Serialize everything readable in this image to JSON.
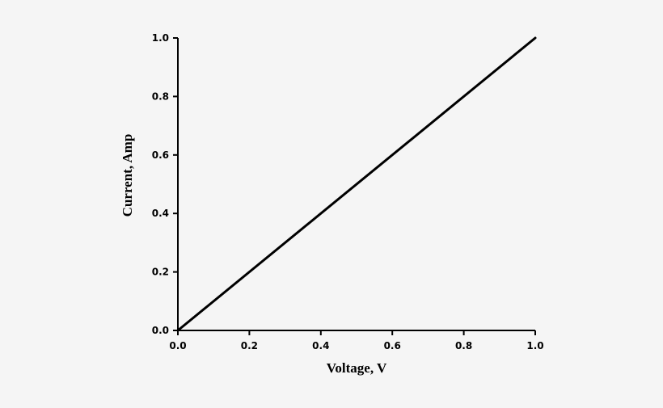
{
  "chart_data": {
    "type": "line",
    "title": "",
    "xlabel": "Voltage, V",
    "ylabel": "Current, Amp",
    "xlim": [
      0.0,
      1.0
    ],
    "ylim": [
      0.0,
      1.0
    ],
    "xticks": [
      "0.0",
      "0.2",
      "0.4",
      "0.6",
      "0.8",
      "1.0"
    ],
    "yticks": [
      "0.0",
      "0.2",
      "0.4",
      "0.6",
      "0.8",
      "1.0"
    ],
    "grid": false,
    "legend": "none",
    "series": [
      {
        "x": [
          0.0,
          1.0
        ],
        "y": [
          0.0,
          1.0
        ],
        "color": "#000000"
      }
    ]
  }
}
